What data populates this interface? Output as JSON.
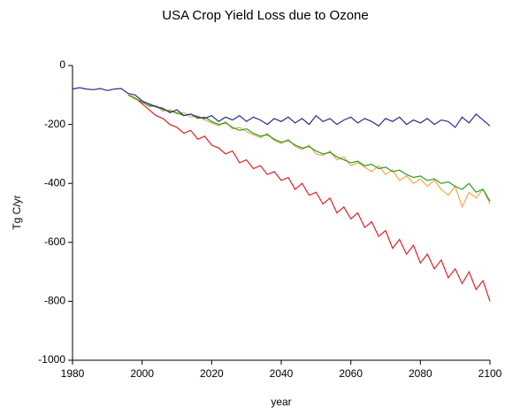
{
  "chart_data": {
    "type": "line",
    "title": "USA Crop Yield Loss due to Ozone",
    "xlabel": "year",
    "ylabel": "Tg C/yr",
    "x": [
      1980,
      1982,
      1984,
      1986,
      1988,
      1990,
      1992,
      1994,
      1996,
      1998,
      2000,
      2002,
      2004,
      2006,
      2008,
      2010,
      2012,
      2014,
      2016,
      2018,
      2020,
      2022,
      2024,
      2026,
      2028,
      2030,
      2032,
      2034,
      2036,
      2038,
      2040,
      2042,
      2044,
      2046,
      2048,
      2050,
      2052,
      2054,
      2056,
      2058,
      2060,
      2062,
      2064,
      2066,
      2068,
      2070,
      2072,
      2074,
      2076,
      2078,
      2080,
      2082,
      2084,
      2086,
      2088,
      2090,
      2092,
      2094,
      2096,
      2098,
      2100
    ],
    "series": [
      {
        "color": "#e0202a",
        "values": [
          null,
          null,
          null,
          null,
          null,
          null,
          null,
          null,
          -100,
          -110,
          -130,
          -150,
          -170,
          -180,
          -200,
          -210,
          -230,
          -220,
          -250,
          -240,
          -270,
          -280,
          -300,
          -290,
          -330,
          -320,
          -350,
          -340,
          -370,
          -360,
          -390,
          -380,
          -420,
          -400,
          -440,
          -430,
          -470,
          -450,
          -500,
          -480,
          -520,
          -500,
          -550,
          -530,
          -580,
          -560,
          -620,
          -590,
          -640,
          -610,
          -670,
          -640,
          -690,
          -660,
          -720,
          -690,
          -740,
          -700,
          -760,
          -730,
          -800
        ]
      },
      {
        "color": "#ffa54f",
        "values": [
          null,
          null,
          null,
          null,
          null,
          null,
          null,
          null,
          -100,
          -115,
          -120,
          -140,
          -135,
          -155,
          -150,
          -165,
          -160,
          -175,
          -170,
          -185,
          -195,
          -205,
          -190,
          -215,
          -210,
          -225,
          -235,
          -245,
          -230,
          -255,
          -265,
          -250,
          -275,
          -285,
          -270,
          -300,
          -305,
          -290,
          -320,
          -310,
          -340,
          -330,
          -345,
          -360,
          -340,
          -370,
          -355,
          -390,
          -375,
          -400,
          -385,
          -410,
          -390,
          -420,
          -440,
          -410,
          -480,
          -430,
          -450,
          -420,
          -470
        ]
      },
      {
        "color": "#22a022",
        "values": [
          null,
          null,
          null,
          null,
          null,
          null,
          null,
          null,
          -100,
          -110,
          -125,
          -135,
          -140,
          -150,
          -155,
          -160,
          -170,
          -165,
          -180,
          -175,
          -190,
          -200,
          -195,
          -210,
          -220,
          -215,
          -230,
          -240,
          -235,
          -250,
          -260,
          -255,
          -270,
          -280,
          -275,
          -290,
          -300,
          -295,
          -310,
          -320,
          -330,
          -325,
          -340,
          -335,
          -350,
          -345,
          -360,
          -355,
          -370,
          -380,
          -375,
          -390,
          -385,
          -400,
          -395,
          -410,
          -420,
          -400,
          -430,
          -420,
          -460
        ]
      },
      {
        "color": "#2b2b8f",
        "values": [
          -80,
          -75,
          -80,
          -82,
          -78,
          -85,
          -80,
          -78,
          -95,
          -100,
          -120,
          -130,
          -140,
          -145,
          -160,
          -150,
          -170,
          -165,
          -175,
          -180,
          -170,
          -190,
          -175,
          -185,
          -170,
          -190,
          -175,
          -185,
          -200,
          -180,
          -190,
          -175,
          -195,
          -180,
          -200,
          -170,
          -190,
          -180,
          -200,
          -185,
          -175,
          -195,
          -180,
          -190,
          -205,
          -180,
          -190,
          -175,
          -200,
          -185,
          -195,
          -180,
          -200,
          -185,
          -190,
          -210,
          -175,
          -195,
          -165,
          -185,
          -205
        ]
      }
    ],
    "xlim": [
      1980,
      2100
    ],
    "xticks": [
      1980,
      2000,
      2020,
      2040,
      2060,
      2080,
      2100
    ],
    "ylim": [
      -1000,
      0
    ],
    "yticks": [
      -1000,
      -800,
      -600,
      -400,
      -200,
      0
    ]
  }
}
